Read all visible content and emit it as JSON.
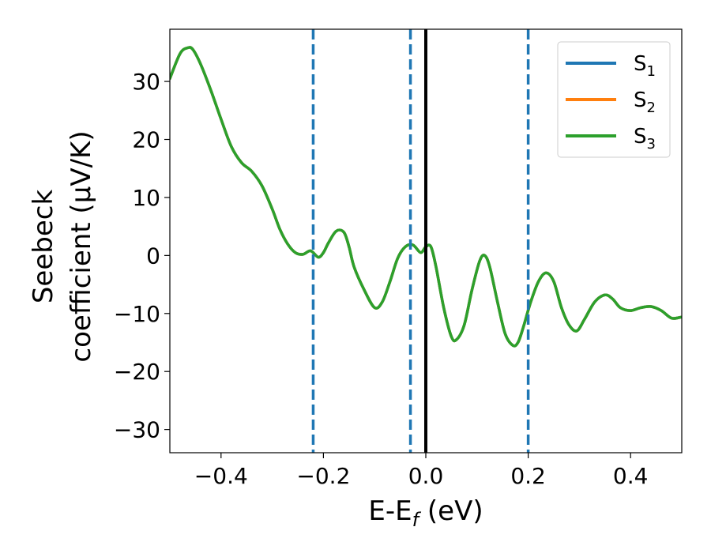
{
  "chart_data": {
    "type": "line",
    "xlabel": "E-E",
    "xlabel_sub": "f",
    "xlabel_unit": " (eV)",
    "ylabel_line1": "Seebeck",
    "ylabel_line2": "coefficient  (μV/K)",
    "xlim": [
      -0.5,
      0.5
    ],
    "ylim": [
      -34,
      39
    ],
    "x_ticks": [
      -0.4,
      -0.2,
      0.0,
      0.2,
      0.4
    ],
    "x_tick_labels": [
      "−0.4",
      "−0.2",
      "0.0",
      "0.2",
      "0.4"
    ],
    "y_ticks": [
      -30,
      -20,
      -10,
      0,
      10,
      20,
      30
    ],
    "y_tick_labels": [
      "−30",
      "−20",
      "−10",
      "0",
      "10",
      "20",
      "30"
    ],
    "grid": false,
    "legend_position": "top-right",
    "series": [
      {
        "name": "S1",
        "label_main": "S",
        "label_sub": "1",
        "color": "#1f77b4",
        "x": [
          -0.5,
          -0.48,
          -0.465,
          -0.455,
          -0.44,
          -0.42,
          -0.4,
          -0.38,
          -0.36,
          -0.34,
          -0.32,
          -0.3,
          -0.285,
          -0.27,
          -0.255,
          -0.24,
          -0.225,
          -0.21,
          -0.2,
          -0.19,
          -0.175,
          -0.16,
          -0.15,
          -0.14,
          -0.12,
          -0.1,
          -0.085,
          -0.07,
          -0.055,
          -0.04,
          -0.025,
          -0.01,
          0.0,
          0.01,
          0.02,
          0.035,
          0.05,
          0.06,
          0.075,
          0.09,
          0.105,
          0.115,
          0.125,
          0.14,
          0.155,
          0.17,
          0.18,
          0.19,
          0.205,
          0.22,
          0.235,
          0.25,
          0.265,
          0.28,
          0.295,
          0.31,
          0.33,
          0.35,
          0.365,
          0.38,
          0.4,
          0.42,
          0.44,
          0.46,
          0.48,
          0.5
        ],
        "y": [
          30.5,
          34.8,
          35.8,
          35.5,
          33.0,
          28.5,
          23.5,
          18.8,
          16.0,
          14.5,
          12.0,
          8.0,
          4.5,
          2.0,
          0.5,
          0.2,
          0.8,
          -0.3,
          0.5,
          2.2,
          4.2,
          4.0,
          1.5,
          -2.0,
          -6.0,
          -9.0,
          -8.0,
          -4.5,
          -0.5,
          1.5,
          1.8,
          0.5,
          1.5,
          1.5,
          -2.0,
          -9.0,
          -14.0,
          -14.5,
          -12.0,
          -6.0,
          -1.0,
          0.0,
          -2.0,
          -8.0,
          -13.5,
          -15.5,
          -15.0,
          -12.5,
          -8.0,
          -4.5,
          -3.0,
          -4.5,
          -9.0,
          -12.0,
          -13.0,
          -11.0,
          -8.0,
          -6.8,
          -7.5,
          -9.0,
          -9.5,
          -9.0,
          -8.8,
          -9.5,
          -10.8,
          -10.6
        ]
      },
      {
        "name": "S2",
        "label_main": "S",
        "label_sub": "2",
        "color": "#ff7f0e",
        "x": [
          -0.5,
          -0.48,
          -0.465,
          -0.455,
          -0.44,
          -0.42,
          -0.4,
          -0.38,
          -0.36,
          -0.34,
          -0.32,
          -0.3,
          -0.285,
          -0.27,
          -0.255,
          -0.24,
          -0.225,
          -0.21,
          -0.2,
          -0.19,
          -0.175,
          -0.16,
          -0.15,
          -0.14,
          -0.12,
          -0.1,
          -0.085,
          -0.07,
          -0.055,
          -0.04,
          -0.025,
          -0.01,
          0.0,
          0.01,
          0.02,
          0.035,
          0.05,
          0.06,
          0.075,
          0.09,
          0.105,
          0.115,
          0.125,
          0.14,
          0.155,
          0.17,
          0.18,
          0.19,
          0.205,
          0.22,
          0.235,
          0.25,
          0.265,
          0.28,
          0.295,
          0.31,
          0.33,
          0.35,
          0.365,
          0.38,
          0.4,
          0.42,
          0.44,
          0.46,
          0.48,
          0.5
        ],
        "y": [
          30.5,
          34.8,
          35.8,
          35.5,
          33.0,
          28.5,
          23.5,
          18.8,
          16.0,
          14.5,
          12.0,
          8.0,
          4.5,
          2.0,
          0.5,
          0.2,
          0.8,
          -0.3,
          0.5,
          2.2,
          4.2,
          4.0,
          1.5,
          -2.0,
          -6.0,
          -9.0,
          -8.0,
          -4.5,
          -0.5,
          1.5,
          1.8,
          0.5,
          1.5,
          1.5,
          -2.0,
          -9.0,
          -14.0,
          -14.5,
          -12.0,
          -6.0,
          -1.0,
          0.0,
          -2.0,
          -8.0,
          -13.5,
          -15.5,
          -15.0,
          -12.5,
          -8.0,
          -4.5,
          -3.0,
          -4.5,
          -9.0,
          -12.0,
          -13.0,
          -11.0,
          -8.0,
          -6.8,
          -7.5,
          -9.0,
          -9.5,
          -9.0,
          -8.8,
          -9.5,
          -10.8,
          -10.6
        ]
      },
      {
        "name": "S3",
        "label_main": "S",
        "label_sub": "3",
        "color": "#2ca02c",
        "x": [
          -0.5,
          -0.48,
          -0.465,
          -0.455,
          -0.44,
          -0.42,
          -0.4,
          -0.38,
          -0.36,
          -0.34,
          -0.32,
          -0.3,
          -0.285,
          -0.27,
          -0.255,
          -0.24,
          -0.225,
          -0.21,
          -0.2,
          -0.19,
          -0.175,
          -0.16,
          -0.15,
          -0.14,
          -0.12,
          -0.1,
          -0.085,
          -0.07,
          -0.055,
          -0.04,
          -0.025,
          -0.01,
          0.0,
          0.01,
          0.02,
          0.035,
          0.05,
          0.06,
          0.075,
          0.09,
          0.105,
          0.115,
          0.125,
          0.14,
          0.155,
          0.17,
          0.18,
          0.19,
          0.205,
          0.22,
          0.235,
          0.25,
          0.265,
          0.28,
          0.295,
          0.31,
          0.33,
          0.35,
          0.365,
          0.38,
          0.4,
          0.42,
          0.44,
          0.46,
          0.48,
          0.5
        ],
        "y": [
          30.5,
          34.8,
          35.8,
          35.5,
          33.0,
          28.5,
          23.5,
          18.8,
          16.0,
          14.5,
          12.0,
          8.0,
          4.5,
          2.0,
          0.5,
          0.2,
          0.8,
          -0.3,
          0.5,
          2.2,
          4.2,
          4.0,
          1.5,
          -2.0,
          -6.0,
          -9.0,
          -8.0,
          -4.5,
          -0.5,
          1.5,
          1.8,
          0.5,
          1.5,
          1.5,
          -2.0,
          -9.0,
          -14.0,
          -14.5,
          -12.0,
          -6.0,
          -1.0,
          0.0,
          -2.0,
          -8.0,
          -13.5,
          -15.5,
          -15.0,
          -12.5,
          -8.0,
          -4.5,
          -3.0,
          -4.5,
          -9.0,
          -12.0,
          -13.0,
          -11.0,
          -8.0,
          -6.8,
          -7.5,
          -9.0,
          -9.5,
          -9.0,
          -8.8,
          -9.5,
          -10.8,
          -10.6
        ]
      }
    ],
    "vlines": [
      {
        "x": -0.22,
        "style": "dashed",
        "color": "#1f77b4"
      },
      {
        "x": -0.03,
        "style": "dashed",
        "color": "#1f77b4"
      },
      {
        "x": 0.0,
        "style": "solid",
        "color": "#000000"
      },
      {
        "x": 0.2,
        "style": "dashed",
        "color": "#1f77b4"
      }
    ]
  }
}
